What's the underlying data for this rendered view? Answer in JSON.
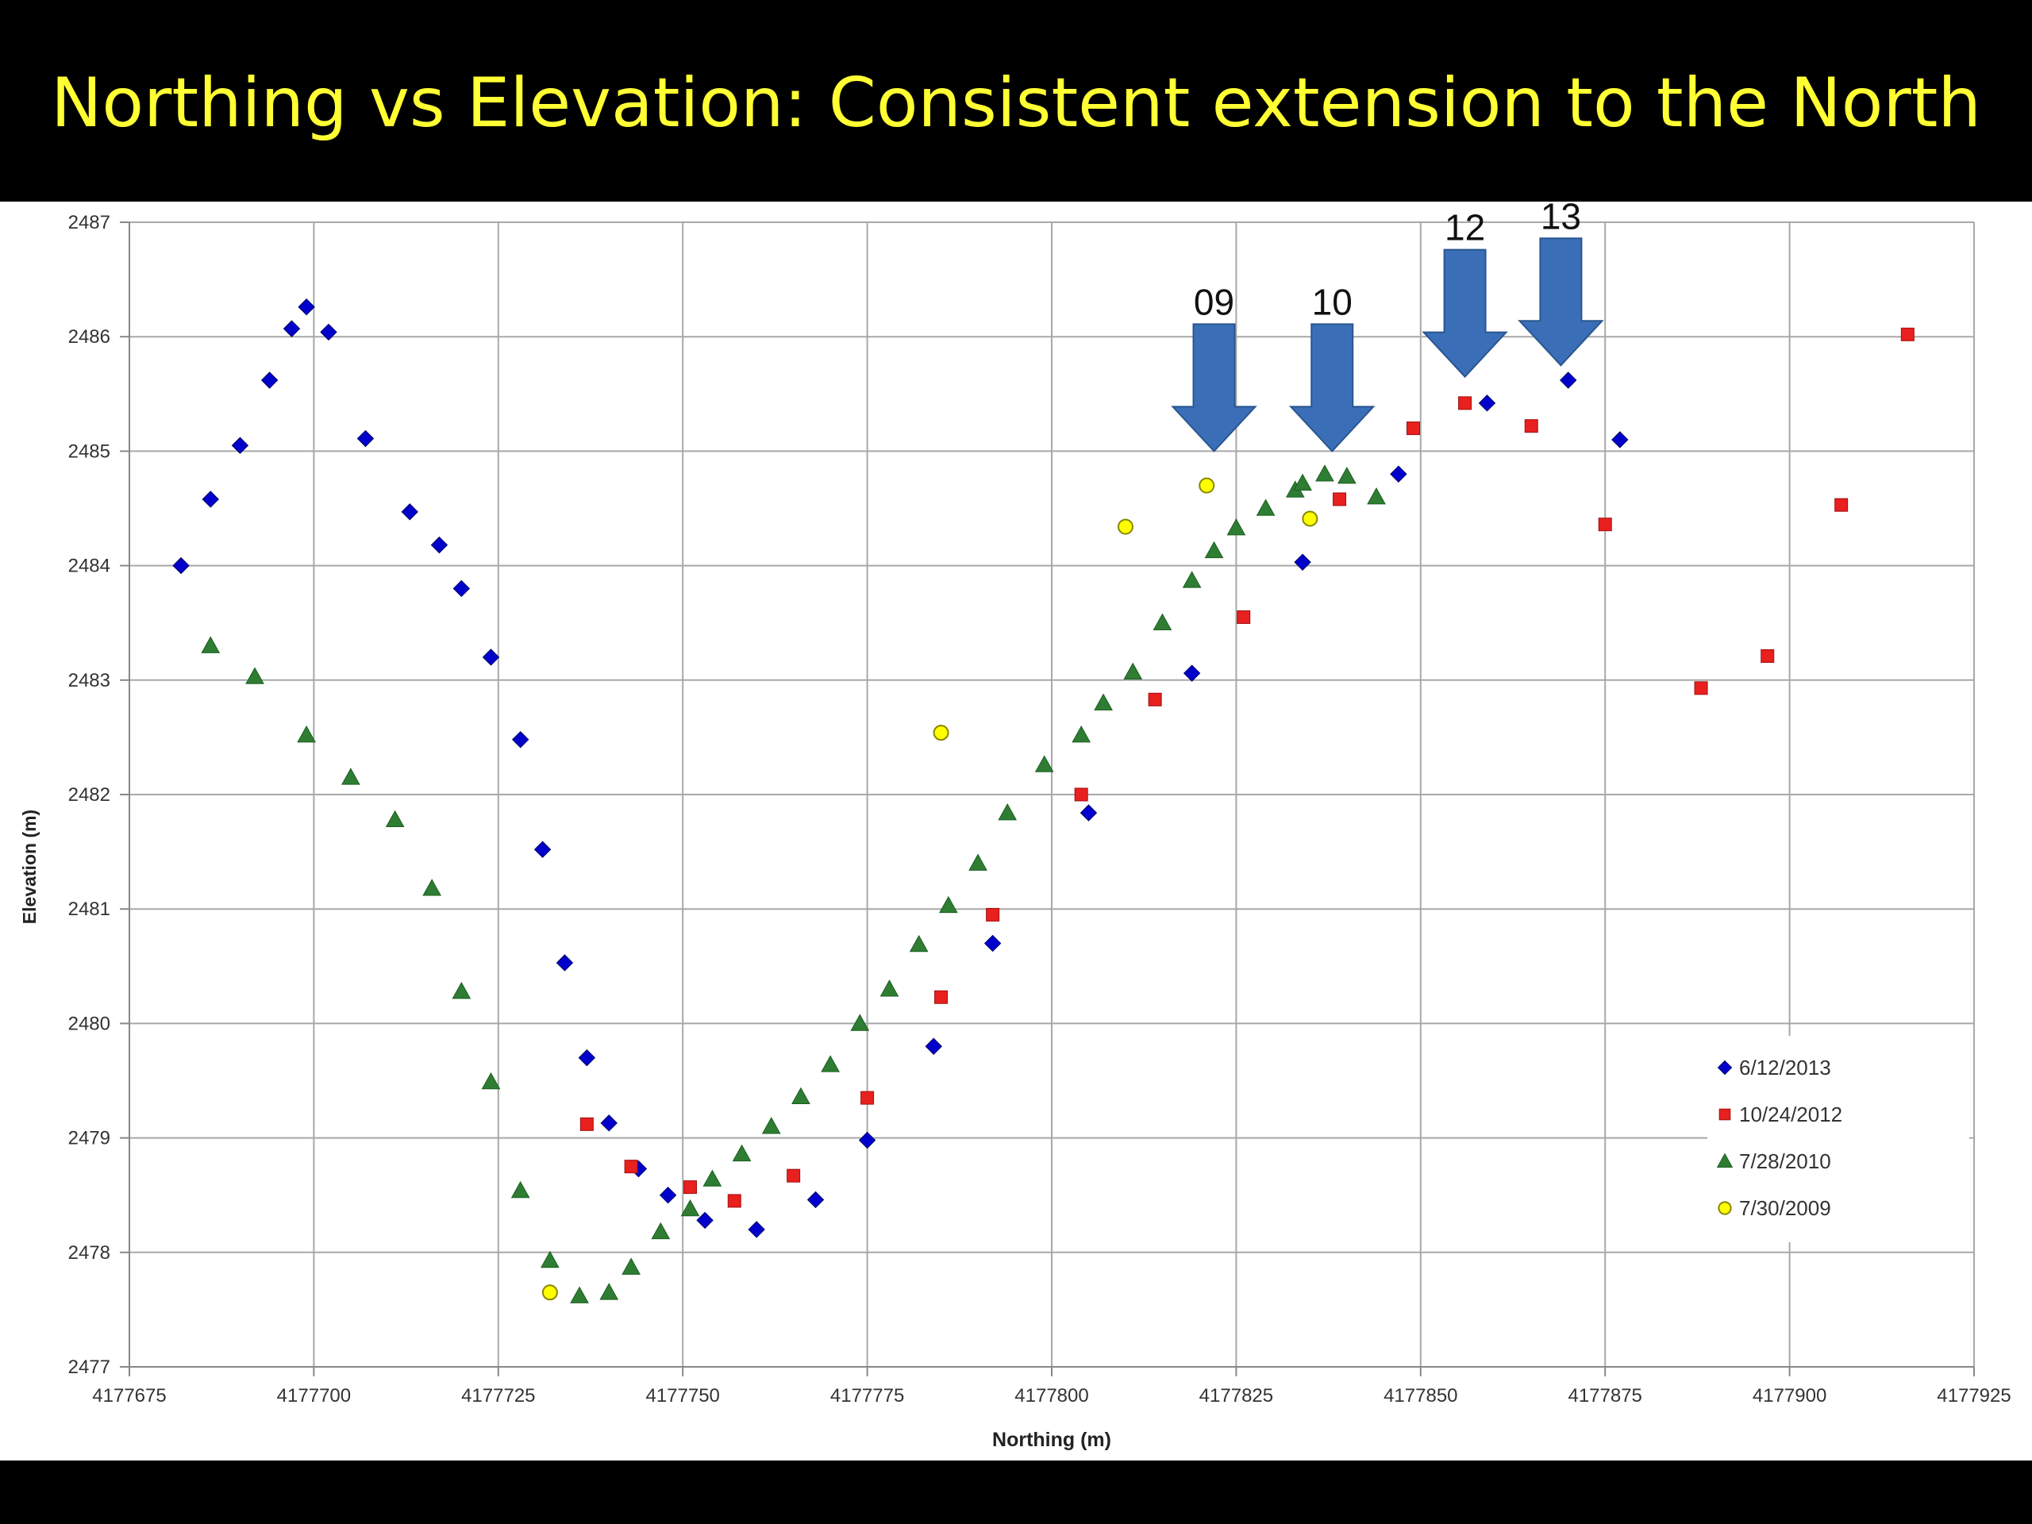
{
  "slide": {
    "title": "Northing vs Elevation:  Consistent extension to the North"
  },
  "colors": {
    "background": "#000000",
    "title": "#ffff33",
    "arrow": "#3a6fb8"
  },
  "arrows": [
    {
      "label": "09",
      "x": 4177822,
      "tip": 2485.0
    },
    {
      "label": "10",
      "x": 4177838,
      "tip": 2485.0
    },
    {
      "label": "12",
      "x": 4177856,
      "tip": 2485.65
    },
    {
      "label": "13",
      "x": 4177869,
      "tip": 2485.75
    }
  ],
  "chart_data": {
    "type": "scatter",
    "title": "",
    "xlabel": "Northing (m)",
    "ylabel": "Elevation  (m)",
    "xlim": [
      4177675,
      4177925
    ],
    "ylim": [
      2477,
      2487
    ],
    "xticks": [
      4177675,
      4177700,
      4177725,
      4177750,
      4177775,
      4177800,
      4177825,
      4177850,
      4177875,
      4177900,
      4177925
    ],
    "yticks": [
      2477,
      2478,
      2479,
      2480,
      2481,
      2482,
      2483,
      2484,
      2485,
      2486,
      2487
    ],
    "grid": true,
    "legend_position": "bottom-right",
    "series": [
      {
        "name": "6/12/2013",
        "marker": "diamond",
        "color": "#0000cc",
        "points": [
          [
            4177682,
            2484.0
          ],
          [
            4177686,
            2484.58
          ],
          [
            4177690,
            2485.05
          ],
          [
            4177694,
            2485.62
          ],
          [
            4177697,
            2486.07
          ],
          [
            4177699,
            2486.26
          ],
          [
            4177702,
            2486.04
          ],
          [
            4177707,
            2485.11
          ],
          [
            4177713,
            2484.47
          ],
          [
            4177717,
            2484.18
          ],
          [
            4177720,
            2483.8
          ],
          [
            4177724,
            2483.2
          ],
          [
            4177728,
            2482.48
          ],
          [
            4177731,
            2481.52
          ],
          [
            4177734,
            2480.53
          ],
          [
            4177737,
            2479.7
          ],
          [
            4177740,
            2479.13
          ],
          [
            4177744,
            2478.73
          ],
          [
            4177748,
            2478.5
          ],
          [
            4177753,
            2478.28
          ],
          [
            4177760,
            2478.2
          ],
          [
            4177768,
            2478.46
          ],
          [
            4177775,
            2478.98
          ],
          [
            4177784,
            2479.8
          ],
          [
            4177792,
            2480.7
          ],
          [
            4177805,
            2481.84
          ],
          [
            4177819,
            2483.06
          ],
          [
            4177834,
            2484.03
          ],
          [
            4177847,
            2484.8
          ],
          [
            4177859,
            2485.42
          ],
          [
            4177870,
            2485.62
          ],
          [
            4177877,
            2485.1
          ]
        ]
      },
      {
        "name": "10/24/2012",
        "marker": "square",
        "color": "#e8201e",
        "points": [
          [
            4177737,
            2479.12
          ],
          [
            4177743,
            2478.75
          ],
          [
            4177751,
            2478.57
          ],
          [
            4177757,
            2478.45
          ],
          [
            4177765,
            2478.67
          ],
          [
            4177775,
            2479.35
          ],
          [
            4177785,
            2480.23
          ],
          [
            4177792,
            2480.95
          ],
          [
            4177804,
            2482.0
          ],
          [
            4177814,
            2482.83
          ],
          [
            4177826,
            2483.55
          ],
          [
            4177839,
            2484.58
          ],
          [
            4177849,
            2485.2
          ],
          [
            4177856,
            2485.42
          ],
          [
            4177865,
            2485.22
          ],
          [
            4177875,
            2484.36
          ],
          [
            4177888,
            2482.93
          ],
          [
            4177897,
            2483.21
          ],
          [
            4177907,
            2484.53
          ],
          [
            4177916,
            2486.02
          ]
        ]
      },
      {
        "name": "7/28/2010",
        "marker": "triangle",
        "color": "#2e7d32",
        "points": [
          [
            4177686,
            2483.3
          ],
          [
            4177692,
            2483.03
          ],
          [
            4177699,
            2482.52
          ],
          [
            4177705,
            2482.15
          ],
          [
            4177711,
            2481.78
          ],
          [
            4177716,
            2481.18
          ],
          [
            4177720,
            2480.28
          ],
          [
            4177724,
            2479.49
          ],
          [
            4177728,
            2478.54
          ],
          [
            4177732,
            2477.93
          ],
          [
            4177736,
            2477.62
          ],
          [
            4177740,
            2477.65
          ],
          [
            4177743,
            2477.87
          ],
          [
            4177747,
            2478.18
          ],
          [
            4177751,
            2478.38
          ],
          [
            4177754,
            2478.64
          ],
          [
            4177758,
            2478.86
          ],
          [
            4177762,
            2479.1
          ],
          [
            4177766,
            2479.36
          ],
          [
            4177770,
            2479.64
          ],
          [
            4177774,
            2480.0
          ],
          [
            4177778,
            2480.3
          ],
          [
            4177782,
            2480.69
          ],
          [
            4177786,
            2481.03
          ],
          [
            4177790,
            2481.4
          ],
          [
            4177794,
            2481.84
          ],
          [
            4177799,
            2482.26
          ],
          [
            4177804,
            2482.52
          ],
          [
            4177807,
            2482.8
          ],
          [
            4177811,
            2483.07
          ],
          [
            4177815,
            2483.5
          ],
          [
            4177819,
            2483.87
          ],
          [
            4177822,
            2484.13
          ],
          [
            4177825,
            2484.33
          ],
          [
            4177829,
            2484.5
          ],
          [
            4177833,
            2484.66
          ],
          [
            4177834,
            2484.72
          ],
          [
            4177837,
            2484.8
          ],
          [
            4177840,
            2484.78
          ],
          [
            4177844,
            2484.6
          ]
        ]
      },
      {
        "name": "7/30/2009",
        "marker": "circle",
        "color": "#ffff00",
        "points": [
          [
            4177732,
            2477.65
          ],
          [
            4177785,
            2482.54
          ],
          [
            4177810,
            2484.34
          ],
          [
            4177821,
            2484.7
          ],
          [
            4177835,
            2484.41
          ]
        ]
      }
    ]
  }
}
